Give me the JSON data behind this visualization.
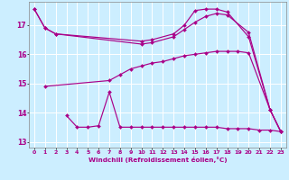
{
  "background_color": "#cceeff",
  "grid_color": "#ffffff",
  "line_color": "#aa0088",
  "xlabel": "Windchill (Refroidissement éolien,°C)",
  "xlim": [
    -0.5,
    23.5
  ],
  "ylim": [
    12.8,
    17.8
  ],
  "yticks": [
    13,
    14,
    15,
    16,
    17
  ],
  "xticks": [
    0,
    1,
    2,
    3,
    4,
    5,
    6,
    7,
    8,
    9,
    10,
    11,
    12,
    13,
    14,
    15,
    16,
    17,
    18,
    19,
    20,
    21,
    22,
    23
  ],
  "curves": [
    {
      "x": [
        0,
        1,
        2,
        10,
        11,
        13,
        14,
        15,
        16,
        17,
        18,
        20,
        22,
        23
      ],
      "y": [
        17.55,
        16.9,
        16.7,
        16.45,
        16.5,
        16.7,
        17.0,
        17.5,
        17.55,
        17.55,
        17.45,
        16.6,
        14.1,
        13.35
      ]
    },
    {
      "x": [
        0,
        1,
        2,
        10,
        11,
        13,
        14,
        15,
        16,
        17,
        18,
        20,
        22,
        23
      ],
      "y": [
        17.55,
        16.9,
        16.7,
        16.35,
        16.4,
        16.6,
        16.85,
        17.1,
        17.3,
        17.4,
        17.35,
        16.75,
        14.1,
        13.35
      ]
    },
    {
      "x": [
        1,
        7,
        8,
        9,
        10,
        11,
        12,
        13,
        14,
        15,
        16,
        17,
        18,
        19,
        20,
        22,
        23
      ],
      "y": [
        14.9,
        15.1,
        15.3,
        15.5,
        15.6,
        15.7,
        15.75,
        15.85,
        15.95,
        16.0,
        16.05,
        16.1,
        16.1,
        16.1,
        16.05,
        14.1,
        13.35
      ]
    },
    {
      "x": [
        3,
        4,
        5,
        6,
        7,
        8,
        9,
        10,
        11,
        12,
        13,
        14,
        15,
        16,
        17,
        18,
        19,
        20,
        21,
        22,
        23
      ],
      "y": [
        13.9,
        13.5,
        13.5,
        13.55,
        14.7,
        13.5,
        13.5,
        13.5,
        13.5,
        13.5,
        13.5,
        13.5,
        13.5,
        13.5,
        13.5,
        13.45,
        13.45,
        13.45,
        13.4,
        13.4,
        13.35
      ]
    }
  ]
}
